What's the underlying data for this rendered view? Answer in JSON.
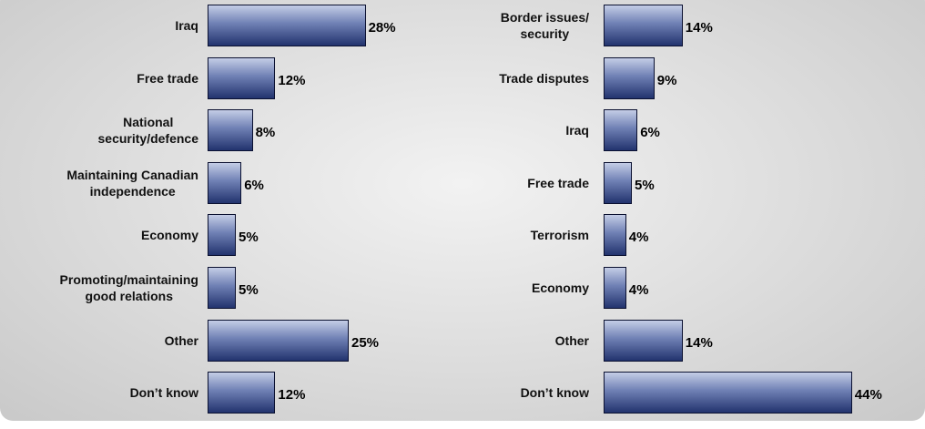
{
  "chart_data": [
    {
      "type": "bar",
      "orientation": "horizontal",
      "color": "#22336e",
      "categories": [
        "Iraq",
        "Free trade",
        "National\nsecurity/defence",
        "Maintaining Canadian\nindependence",
        "Economy",
        "Promoting/maintaining\ngood relations",
        "Other",
        "Don’t know"
      ],
      "values": [
        28,
        12,
        8,
        6,
        5,
        5,
        25,
        12
      ],
      "value_labels": [
        "28%",
        "12%",
        "8%",
        "6%",
        "5%",
        "5%",
        "25%",
        "12%"
      ]
    },
    {
      "type": "bar",
      "orientation": "horizontal",
      "color": "#22336e",
      "categories": [
        "Border issues/\nsecurity",
        "Trade disputes",
        "Iraq",
        "Free trade",
        "Terrorism",
        "Economy",
        "Other",
        "Don’t know"
      ],
      "values": [
        14,
        9,
        6,
        5,
        4,
        4,
        14,
        44
      ],
      "value_labels": [
        "14%",
        "9%",
        "6%",
        "5%",
        "4%",
        "4%",
        "14%",
        "44%"
      ]
    }
  ]
}
